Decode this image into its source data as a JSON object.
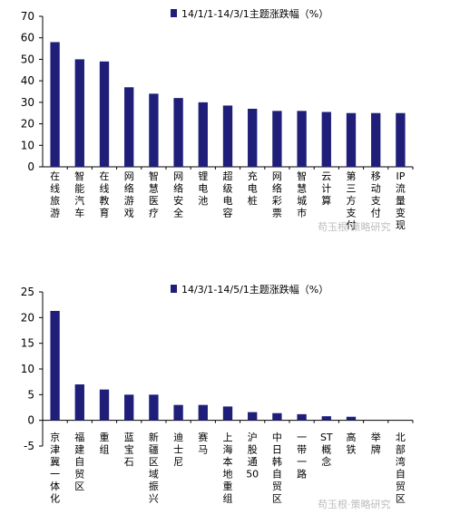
{
  "chart_data": [
    {
      "type": "bar",
      "legend": "14/1/1-14/3/1主题涨跌幅（%）",
      "categories": [
        "在线旅游",
        "智能汽车",
        "在线教育",
        "网络游戏",
        "智慧医疗",
        "网络安全",
        "锂电池",
        "超级电容",
        "充电桩",
        "网络彩票",
        "智慧城市",
        "云计算",
        "第三方支付",
        "移动支付",
        "IP流量变现"
      ],
      "values": [
        58,
        50,
        49,
        37,
        34,
        32,
        30,
        28.5,
        27,
        26,
        26,
        25.5,
        25,
        25,
        25
      ],
      "ylim": [
        0,
        70
      ],
      "yticks": [
        0,
        10,
        20,
        30,
        40,
        50,
        60,
        70
      ],
      "xlabel": "",
      "ylabel": "",
      "color": "#1f1f7a",
      "grid": false,
      "legend_position": "top"
    },
    {
      "type": "bar",
      "legend": "14/3/1-14/5/1主题涨跌幅（%）",
      "categories": [
        "京津冀一体化",
        "福建自贸区",
        "重组",
        "蓝宝石",
        "新疆区域振兴",
        "迪士尼",
        "赛马",
        "上海本地重组",
        "沪股通50",
        "中日韩自贸区",
        "一带一路",
        "ST概念",
        "高铁",
        "举牌",
        "北部湾自贸区"
      ],
      "values": [
        21.3,
        7,
        6,
        5,
        5,
        3,
        3,
        2.7,
        1.6,
        1.4,
        1.2,
        0.8,
        0.7,
        0,
        0
      ],
      "ylim": [
        -5,
        25
      ],
      "yticks": [
        -5,
        0,
        5,
        10,
        15,
        20,
        25
      ],
      "xlabel": "",
      "ylabel": "",
      "color": "#1f1f7a",
      "grid": false,
      "legend_position": "top"
    }
  ],
  "watermarks": [
    "苟玉根·策略研究",
    "苟玉根·策略研究"
  ]
}
